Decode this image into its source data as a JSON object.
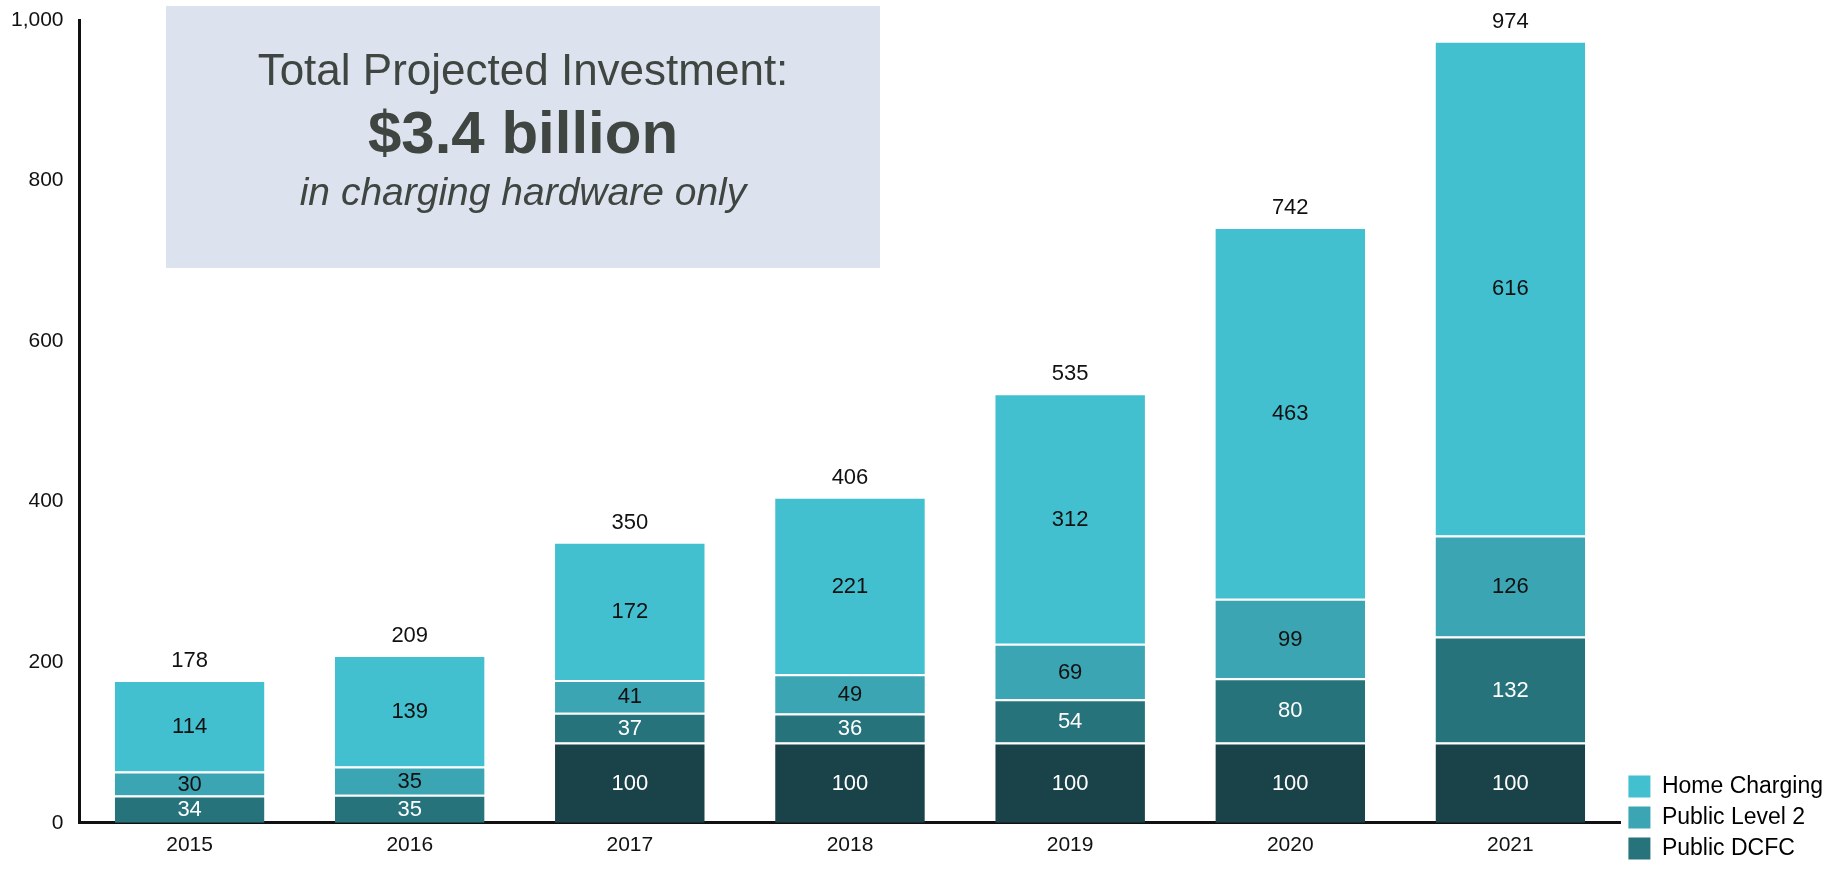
{
  "chart_data": {
    "type": "bar",
    "stacked": true,
    "categories": [
      "2015",
      "2016",
      "2017",
      "2018",
      "2019",
      "2020",
      "2021"
    ],
    "series": [
      {
        "color": "#1a4349",
        "values": [
          null,
          null,
          100,
          100,
          100,
          100,
          100
        ]
      },
      {
        "name": "Public DCFC",
        "color": "#27737c",
        "values": [
          34,
          35,
          37,
          36,
          54,
          80,
          132
        ]
      },
      {
        "name": "Public Level 2",
        "color": "#3ba5b3",
        "values": [
          30,
          35,
          41,
          49,
          69,
          99,
          126
        ]
      },
      {
        "name": "Home Charging",
        "color": "#42c0d0",
        "values": [
          114,
          139,
          172,
          221,
          312,
          463,
          616
        ]
      }
    ],
    "totals": [
      "178",
      "209",
      "350",
      "406",
      "535",
      "742",
      "974"
    ],
    "ylim": [
      0,
      1000
    ],
    "yticks": [
      0,
      200,
      400,
      600,
      800,
      {
        "value": 1000,
        "label": "1,000"
      }
    ],
    "grid": false,
    "data_labels": true,
    "legend": "bottom right",
    "annotations": [
      "Total Projected Investment:",
      "$3.4 billion",
      "in charging hardware only"
    ]
  }
}
